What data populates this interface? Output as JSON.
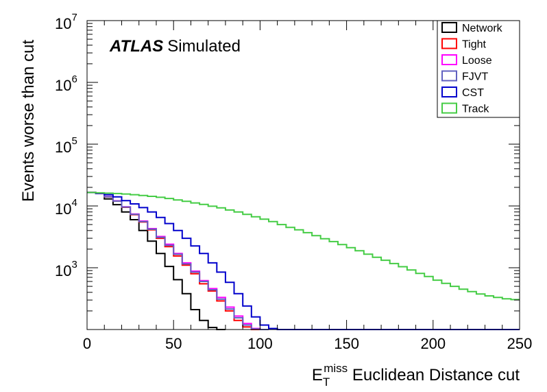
{
  "chart_data": {
    "type": "line",
    "title": "",
    "annotation": {
      "experiment": "ATLAS",
      "status": "Simulated"
    },
    "xlabel": {
      "main": "E",
      "sub": "T",
      "sup": "miss",
      "rest": " Euclidean Distance cut"
    },
    "ylabel": "Events worse than cut",
    "xlim": [
      0,
      250
    ],
    "ylim": [
      100,
      10000000
    ],
    "yscale": "log",
    "x_ticks": [
      "0",
      "50",
      "100",
      "150",
      "200",
      "250"
    ],
    "x_tick_values": [
      0,
      50,
      100,
      150,
      200,
      250
    ],
    "y_ticks": [
      {
        "base": "10",
        "exp": "3",
        "value": 1000
      },
      {
        "base": "10",
        "exp": "4",
        "value": 10000
      },
      {
        "base": "10",
        "exp": "5",
        "value": 100000
      },
      {
        "base": "10",
        "exp": "6",
        "value": 1000000
      },
      {
        "base": "10",
        "exp": "7",
        "value": 10000000
      }
    ],
    "bin_width": 5,
    "legend_position": "top-right",
    "series": [
      {
        "name": "Network",
        "color": "#000000",
        "x": [
          0,
          5,
          10,
          15,
          20,
          25,
          30,
          35,
          40,
          45,
          50,
          55,
          60,
          65,
          70,
          75
        ],
        "y": [
          16500,
          16000,
          13000,
          10500,
          8000,
          6000,
          4000,
          2700,
          1700,
          1050,
          640,
          380,
          210,
          140,
          108,
          100
        ]
      },
      {
        "name": "Tight",
        "color": "#ff0000",
        "x": [
          0,
          5,
          10,
          15,
          20,
          25,
          30,
          35,
          40,
          45,
          50,
          55,
          60,
          65,
          70,
          75,
          80,
          85,
          90,
          95
        ],
        "y": [
          16500,
          16000,
          14000,
          12000,
          9500,
          7200,
          5500,
          4100,
          3000,
          2200,
          1550,
          1100,
          800,
          550,
          420,
          290,
          200,
          140,
          110,
          100
        ]
      },
      {
        "name": "Loose",
        "color": "#ff00ff",
        "x": [
          0,
          5,
          10,
          15,
          20,
          25,
          30,
          35,
          40,
          45,
          50,
          55,
          60,
          65,
          70,
          75,
          80,
          85,
          90,
          95,
          100
        ],
        "y": [
          16500,
          16000,
          14200,
          12100,
          9700,
          7400,
          5700,
          4300,
          3200,
          2400,
          1700,
          1200,
          880,
          620,
          460,
          330,
          230,
          165,
          125,
          104,
          100
        ]
      },
      {
        "name": "FJVT",
        "color": "#6060c0",
        "x": [
          0,
          5,
          10,
          15,
          20,
          25,
          30,
          35,
          40,
          45,
          50,
          55,
          60,
          65,
          70,
          75,
          80,
          85,
          90,
          95,
          100
        ],
        "y": [
          16500,
          16000,
          14100,
          12000,
          9600,
          7300,
          5600,
          4200,
          3100,
          2300,
          1650,
          1150,
          850,
          600,
          440,
          310,
          215,
          155,
          118,
          102,
          100
        ]
      },
      {
        "name": "CST",
        "color": "#0000cc",
        "x": [
          0,
          5,
          10,
          15,
          20,
          25,
          30,
          35,
          40,
          45,
          50,
          55,
          60,
          65,
          70,
          75,
          80,
          85,
          90,
          95,
          100,
          105,
          110,
          250
        ],
        "y": [
          16500,
          16000,
          15200,
          14000,
          12200,
          10800,
          9400,
          8000,
          6500,
          5200,
          4000,
          3000,
          2250,
          1700,
          1200,
          850,
          580,
          380,
          240,
          160,
          118,
          104,
          100,
          100
        ]
      },
      {
        "name": "Track",
        "color": "#44cc44",
        "x": [
          0,
          5,
          10,
          15,
          20,
          25,
          30,
          35,
          40,
          45,
          50,
          55,
          60,
          65,
          70,
          75,
          80,
          85,
          90,
          95,
          100,
          105,
          110,
          115,
          120,
          125,
          130,
          135,
          140,
          145,
          150,
          155,
          160,
          165,
          170,
          175,
          180,
          185,
          190,
          195,
          200,
          205,
          210,
          215,
          220,
          225,
          230,
          235,
          240,
          245
        ],
        "y": [
          16500,
          16300,
          16100,
          15900,
          15600,
          15200,
          14800,
          14300,
          13800,
          13200,
          12500,
          11900,
          11200,
          10600,
          9900,
          9300,
          8600,
          8000,
          7300,
          6700,
          6100,
          5600,
          5000,
          4500,
          4100,
          3700,
          3300,
          2950,
          2650,
          2370,
          2110,
          1880,
          1660,
          1480,
          1320,
          1170,
          1040,
          920,
          810,
          720,
          630,
          560,
          500,
          450,
          410,
          375,
          350,
          330,
          315,
          305
        ]
      }
    ]
  }
}
